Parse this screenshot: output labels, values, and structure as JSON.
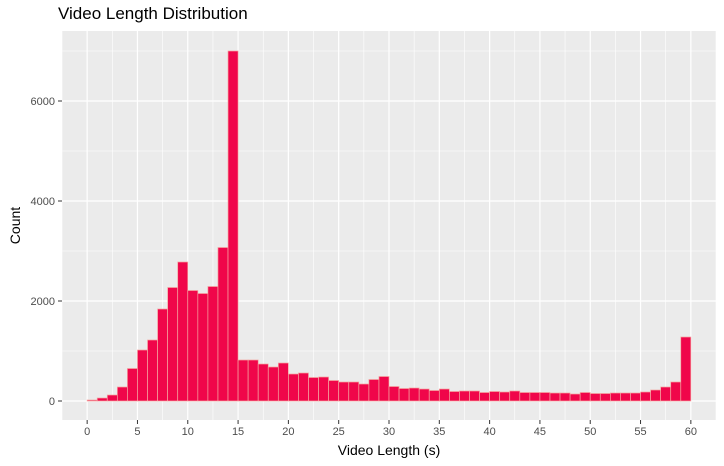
{
  "chart_data": {
    "type": "histogram",
    "title": "Video Length Distribution",
    "xlabel": "Video Length (s)",
    "ylabel": "Count",
    "xlim": [
      -2.5,
      62.5
    ],
    "ylim": [
      -380,
      7400
    ],
    "x_ticks": [
      0,
      5,
      10,
      15,
      20,
      25,
      30,
      35,
      40,
      45,
      50,
      55,
      60
    ],
    "y_ticks": [
      0,
      2000,
      4000,
      6000
    ],
    "bin_width": 1,
    "bin_centers": [
      0.5,
      1.5,
      2.5,
      3.5,
      4.5,
      5.5,
      6.5,
      7.5,
      8.5,
      9.5,
      10.5,
      11.5,
      12.5,
      13.5,
      14.5,
      15.5,
      16.5,
      17.5,
      18.5,
      19.5,
      20.5,
      21.5,
      22.5,
      23.5,
      24.5,
      25.5,
      26.5,
      27.5,
      28.5,
      29.5,
      30.5,
      31.5,
      32.5,
      33.5,
      34.5,
      35.5,
      36.5,
      37.5,
      38.5,
      39.5,
      40.5,
      41.5,
      42.5,
      43.5,
      44.5,
      45.5,
      46.5,
      47.5,
      48.5,
      49.5,
      50.5,
      51.5,
      52.5,
      53.5,
      54.5,
      55.5,
      56.5,
      57.5,
      58.5,
      59.5
    ],
    "counts": [
      20,
      60,
      120,
      280,
      650,
      1020,
      1220,
      1840,
      2270,
      2780,
      2210,
      2150,
      2290,
      3070,
      7000,
      820,
      820,
      740,
      680,
      760,
      540,
      560,
      470,
      480,
      410,
      380,
      380,
      340,
      430,
      490,
      290,
      250,
      260,
      240,
      210,
      240,
      190,
      200,
      200,
      170,
      190,
      180,
      200,
      170,
      170,
      170,
      160,
      160,
      140,
      170,
      150,
      150,
      160,
      160,
      160,
      180,
      220,
      280,
      380,
      1280
    ],
    "grid": true,
    "fill_color": "#F0064A",
    "edge_color": "#F4A6A0",
    "panel_background": "#EBEBEB"
  }
}
